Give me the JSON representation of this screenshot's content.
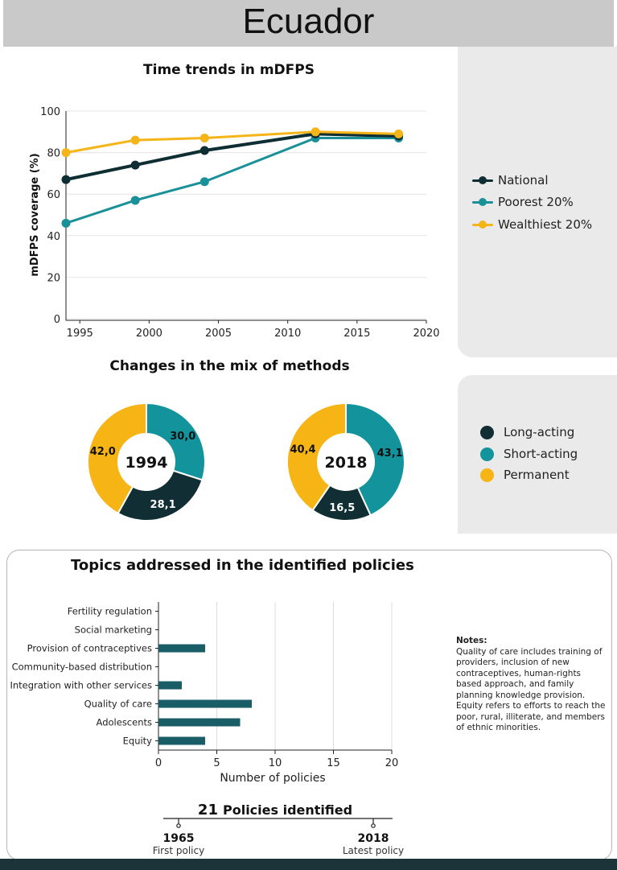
{
  "header": {
    "title": "Ecuador"
  },
  "colors": {
    "national": "#0e2e33",
    "poorest": "#1a9099",
    "wealthiest": "#f5b418",
    "long_acting": "#102e33",
    "short_acting": "#13949c",
    "permanent": "#f7b415",
    "bar": "#195e66"
  },
  "chart_data": [
    {
      "type": "line",
      "title": "Time trends in mDFPS",
      "xlabel": "",
      "ylabel": "mDFPS coverage (%)",
      "xlim": [
        1994,
        2020
      ],
      "ylim": [
        0,
        100
      ],
      "xticks": [
        1995,
        2000,
        2005,
        2010,
        2015,
        2020
      ],
      "yticks": [
        0,
        20,
        40,
        60,
        80,
        100
      ],
      "grid": "horizontal",
      "legend": "right",
      "series": [
        {
          "name": "National",
          "x": [
            1994,
            1999,
            2004,
            2012,
            2018
          ],
          "y": [
            67,
            74,
            81,
            89,
            88
          ]
        },
        {
          "name": "Poorest 20%",
          "x": [
            1994,
            1999,
            2004,
            2012,
            2018
          ],
          "y": [
            46,
            57,
            66,
            87,
            87
          ]
        },
        {
          "name": "Wealthiest 20%",
          "x": [
            1994,
            1999,
            2004,
            2012,
            2018
          ],
          "y": [
            80,
            86,
            87,
            90,
            89
          ]
        }
      ]
    },
    {
      "type": "pie",
      "title": "Changes in the mix of methods",
      "donuts": [
        {
          "label": "1994",
          "slices": [
            {
              "name": "Short-acting",
              "value": 30.0,
              "text": "30,0"
            },
            {
              "name": "Long-acting",
              "value": 28.1,
              "text": "28,1"
            },
            {
              "name": "Permanent",
              "value": 42.0,
              "text": "42,0"
            }
          ]
        },
        {
          "label": "2018",
          "slices": [
            {
              "name": "Short-acting",
              "value": 43.1,
              "text": "43,1"
            },
            {
              "name": "Long-acting",
              "value": 16.5,
              "text": "16,5"
            },
            {
              "name": "Permanent",
              "value": 40.4,
              "text": "40,4"
            }
          ]
        }
      ],
      "legend": [
        "Long-acting",
        "Short-acting",
        "Permanent"
      ]
    },
    {
      "type": "bar",
      "orientation": "horizontal",
      "title": "Topics addressed in the identified policies",
      "xlabel": "Number of policies",
      "xlim": [
        0,
        20
      ],
      "xticks": [
        0,
        5,
        10,
        15,
        20
      ],
      "categories": [
        "Fertility regulation",
        "Social marketing",
        "Provision of contraceptives",
        "Community-based distribution",
        "Integration with other services",
        "Quality of care",
        "Adolescents",
        "Equity"
      ],
      "values": [
        0,
        0,
        4,
        0,
        2,
        8,
        7,
        4
      ]
    }
  ],
  "legend_line": [
    {
      "label": "National",
      "color": "#0e2e33"
    },
    {
      "label": "Poorest 20%",
      "color": "#1a9099"
    },
    {
      "label": "Wealthiest 20%",
      "color": "#f5b418"
    }
  ],
  "legend_methods": [
    {
      "label": "Long-acting",
      "color": "#102e33"
    },
    {
      "label": "Short-acting",
      "color": "#13949c"
    },
    {
      "label": "Permanent",
      "color": "#f7b415"
    }
  ],
  "notes": {
    "title": "Notes:",
    "text1": "Quality of care includes training of providers, inclusion of new contraceptives, human-rights based approach, and family planning knowledge provision.",
    "text2": "Equity refers to efforts to reach the poor, rural, illiterate, and members of ethnic minorities."
  },
  "policies": {
    "count": "21",
    "label": "Policies identified",
    "first_year": "1965",
    "first_label": "First policy",
    "latest_year": "2018",
    "latest_label": "Latest policy"
  }
}
